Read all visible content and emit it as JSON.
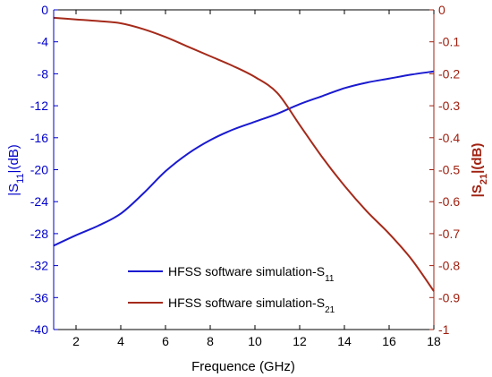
{
  "chart_data": {
    "type": "line",
    "xlabel": "Frequence (GHz)",
    "ylabel_left": "|S11|(dB)",
    "ylabel_right": "|S21|(dB)",
    "xlim": [
      1,
      18
    ],
    "ylim_left": [
      -40,
      0
    ],
    "ylim_right": [
      -1,
      0
    ],
    "x_ticks": [
      2,
      4,
      6,
      8,
      10,
      12,
      14,
      16,
      18
    ],
    "y_left_ticks": [
      0,
      -4,
      -8,
      -12,
      -16,
      -20,
      -24,
      -28,
      -32,
      -36,
      -40
    ],
    "y_right_ticks": [
      0,
      -0.1,
      -0.2,
      -0.3,
      -0.4,
      -0.5,
      -0.6,
      -0.7,
      -0.8,
      -0.9,
      -1
    ],
    "grid": false,
    "legend_position": "bottom-center",
    "colors": {
      "left_axis": "#0000cc",
      "right_axis": "#a02010",
      "s11": "#1a1ad0",
      "s21": "#a52a1a"
    },
    "series": [
      {
        "name": "HFSS software simulation-S11",
        "axis": "left",
        "color": "#1a1ad0",
        "x": [
          1,
          2,
          3,
          4,
          5,
          6,
          7,
          8,
          9,
          10,
          11,
          12,
          13,
          14,
          15,
          16,
          17,
          18
        ],
        "y": [
          -29.5,
          -28.2,
          -27.0,
          -25.5,
          -23.0,
          -20.2,
          -18.0,
          -16.3,
          -15.0,
          -14.0,
          -13.0,
          -11.8,
          -10.8,
          -9.8,
          -9.1,
          -8.6,
          -8.1,
          -7.7
        ]
      },
      {
        "name": "HFSS software simulation-S21",
        "axis": "right",
        "color": "#a52a1a",
        "x": [
          1,
          2,
          3,
          4,
          5,
          6,
          7,
          8,
          9,
          10,
          11,
          12,
          13,
          14,
          15,
          16,
          17,
          18
        ],
        "y": [
          -0.025,
          -0.03,
          -0.035,
          -0.042,
          -0.06,
          -0.085,
          -0.115,
          -0.145,
          -0.175,
          -0.21,
          -0.26,
          -0.36,
          -0.46,
          -0.55,
          -0.63,
          -0.7,
          -0.78,
          -0.88
        ]
      }
    ],
    "legend": {
      "entries": [
        {
          "text": "HFSS software simulation-S",
          "sub": "11"
        },
        {
          "text": "HFSS software simulation-S",
          "sub": "21"
        }
      ]
    }
  }
}
